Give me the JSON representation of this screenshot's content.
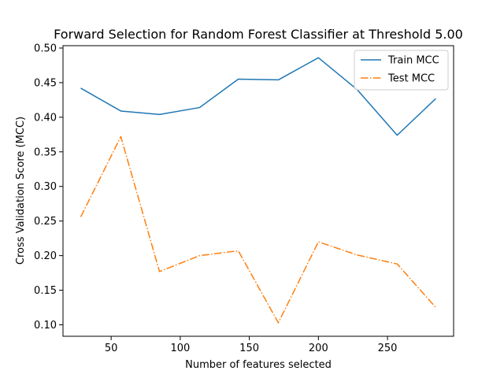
{
  "chart_data": {
    "type": "line",
    "title": "Forward Selection for Random Forest Classifier at Threshold 5.00",
    "xlabel": "Number of features selected",
    "ylabel": "Cross Validation Score (MCC)",
    "xlim": [
      15.15,
      297.85
    ],
    "ylim": [
      0.0835,
      0.5034
    ],
    "x_ticks": [
      50,
      100,
      150,
      200,
      250
    ],
    "y_ticks": [
      0.1,
      0.15,
      0.2,
      0.25,
      0.3,
      0.35,
      0.4,
      0.45,
      0.5
    ],
    "x_tick_labels": [
      "50",
      "100",
      "150",
      "200",
      "250"
    ],
    "y_tick_labels": [
      "0.10",
      "0.15",
      "0.20",
      "0.25",
      "0.30",
      "0.35",
      "0.40",
      "0.45",
      "0.50"
    ],
    "x": [
      28,
      57,
      85,
      114,
      142,
      171,
      200,
      228,
      257,
      285
    ],
    "series": [
      {
        "name": "Train MCC",
        "color": "#1f77b4",
        "linestyle": "solid",
        "values": [
          0.442,
          0.409,
          0.404,
          0.414,
          0.455,
          0.454,
          0.486,
          0.44,
          0.374,
          0.427
        ]
      },
      {
        "name": "Test MCC",
        "color": "#ff7f0e",
        "linestyle": "dashdot",
        "values": [
          0.256,
          0.372,
          0.177,
          0.2,
          0.207,
          0.103,
          0.22,
          0.201,
          0.188,
          0.125
        ]
      }
    ],
    "legend_position": "top-right",
    "grid": false
  }
}
